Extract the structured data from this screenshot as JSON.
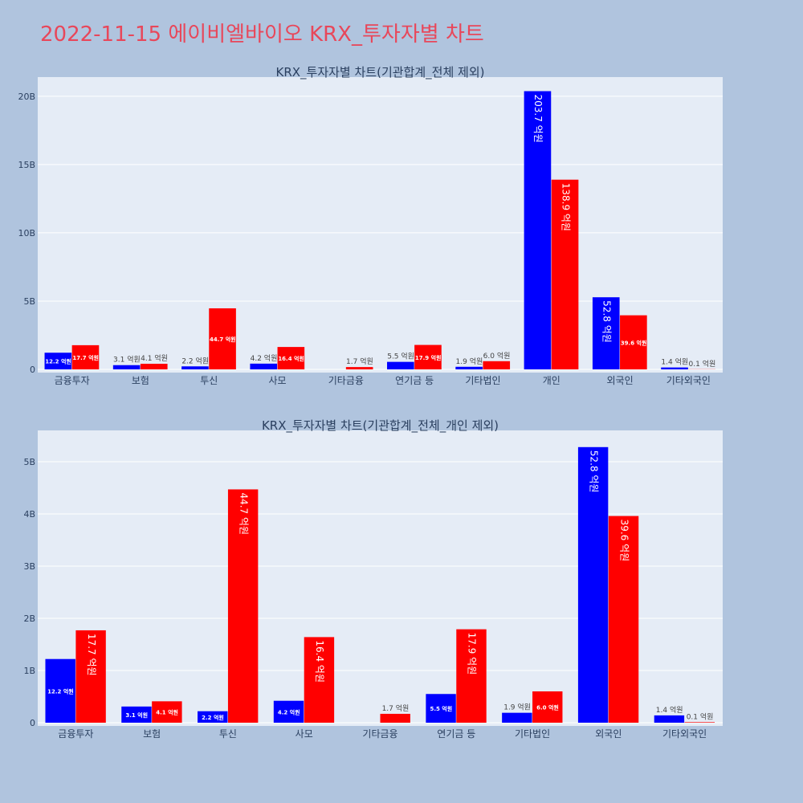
{
  "page_title": "2022-11-15 에이비엘바이오 KRX_투자자별 차트",
  "colors": {
    "buy": "#0000ff",
    "sell": "#ff0000",
    "plot_bg": "#e5ecf6",
    "page_bg": "#b0c4de",
    "title": "#e8475a"
  },
  "chart_data": [
    {
      "type": "bar",
      "title": "KRX_투자자별 차트(기관합계_전체 제외)",
      "categories": [
        "금융투자",
        "보험",
        "투신",
        "사모",
        "기타금융",
        "연기금 등",
        "기타법인",
        "개인",
        "외국인",
        "기타외국인"
      ],
      "series": [
        {
          "color": "#0000ff",
          "values": [
            1.22,
            0.31,
            0.22,
            0.42,
            0,
            0.55,
            0.19,
            20.37,
            5.28,
            0.14
          ],
          "labels": [
            "12.2 억원",
            "3.1 억원",
            "2.2 억원",
            "4.2 억원",
            "",
            "5.5 억원",
            "1.9 억원",
            "203.7 억원",
            "52.8 억원",
            "1.4 억원"
          ]
        },
        {
          "color": "#ff0000",
          "values": [
            1.77,
            0.41,
            4.47,
            1.64,
            0.17,
            1.79,
            0.6,
            13.89,
            3.96,
            0.01
          ],
          "labels": [
            "17.7 억원",
            "4.1 억원",
            "44.7 억원",
            "16.4 억원",
            "1.7 억원",
            "17.9 억원",
            "6.0 억원",
            "138.9 억원",
            "39.6 억원",
            "0.1 억원"
          ]
        }
      ],
      "yticks": [
        0,
        5,
        10,
        15,
        20
      ],
      "ytick_labels": [
        "0",
        "5B",
        "10B",
        "15B",
        "20B"
      ],
      "ylim": [
        0,
        21.4
      ],
      "ylabel": "",
      "xlabel": ""
    },
    {
      "type": "bar",
      "title": "KRX_투자자별 차트(기관합계_전체_개인 제외)",
      "categories": [
        "금융투자",
        "보험",
        "투신",
        "사모",
        "기타금융",
        "연기금 등",
        "기타법인",
        "외국인",
        "기타외국인"
      ],
      "series": [
        {
          "color": "#0000ff",
          "values": [
            1.22,
            0.31,
            0.22,
            0.42,
            0,
            0.55,
            0.19,
            5.28,
            0.14
          ],
          "labels": [
            "12.2 억원",
            "3.1 억원",
            "2.2 억원",
            "4.2 억원",
            "",
            "5.5 억원",
            "1.9 억원",
            "52.8 억원",
            "1.4 억원"
          ]
        },
        {
          "color": "#ff0000",
          "values": [
            1.77,
            0.41,
            4.47,
            1.64,
            0.17,
            1.79,
            0.6,
            3.96,
            0.01
          ],
          "labels": [
            "17.7 억원",
            "4.1 억원",
            "44.7 억원",
            "16.4 억원",
            "1.7 억원",
            "17.9 억원",
            "6.0 억원",
            "39.6 억원",
            "0.1 억원"
          ]
        }
      ],
      "yticks": [
        0,
        1,
        2,
        3,
        4,
        5
      ],
      "ytick_labels": [
        "0",
        "1B",
        "2B",
        "3B",
        "4B",
        "5B"
      ],
      "ylim": [
        0,
        5.6
      ],
      "ylabel": "",
      "xlabel": ""
    }
  ]
}
